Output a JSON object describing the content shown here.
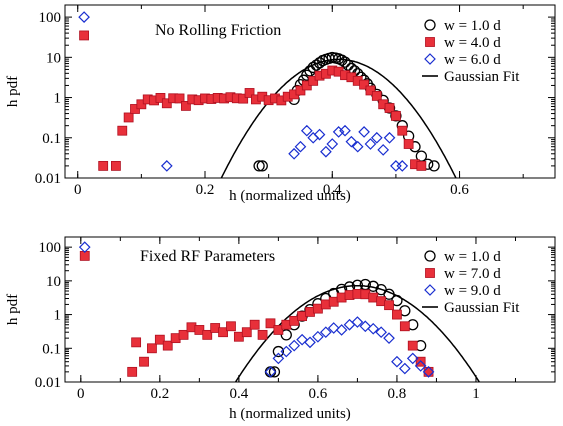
{
  "chart_data": [
    {
      "type": "scatter",
      "title": "No Rolling Friction",
      "xlabel": "h (normalized units)",
      "ylabel": "h pdf",
      "xlim": [
        -0.02,
        0.75
      ],
      "ylim": [
        0.01,
        200
      ],
      "yscale": "log",
      "xticks": [
        0,
        0.2,
        0.4,
        0.6
      ],
      "xtick_labels": [
        "0",
        "0.2",
        "0.4",
        "0.6"
      ],
      "yticks": [
        0.01,
        0.1,
        1,
        10,
        100
      ],
      "ytick_labels": [
        "0.01",
        "0.1",
        "1",
        "10",
        "100"
      ],
      "legend_position": "top-right",
      "series": [
        {
          "name": "w = 1.0 d",
          "marker": "circle",
          "color": "#000000",
          "x": [
            0.285,
            0.29,
            0.34,
            0.345,
            0.35,
            0.355,
            0.36,
            0.365,
            0.37,
            0.375,
            0.38,
            0.385,
            0.39,
            0.395,
            0.4,
            0.405,
            0.41,
            0.415,
            0.42,
            0.425,
            0.43,
            0.435,
            0.44,
            0.445,
            0.45,
            0.455,
            0.46,
            0.47,
            0.48,
            0.49,
            0.5,
            0.51,
            0.52,
            0.53,
            0.54,
            0.55,
            0.56
          ],
          "y": [
            0.02,
            0.02,
            0.9,
            1.5,
            2.1,
            2.7,
            3.6,
            4.6,
            5.6,
            6.4,
            7.3,
            8.3,
            8.9,
            9.4,
            9.9,
            9.6,
            9.2,
            8.5,
            7.6,
            6.4,
            5.3,
            4.6,
            3.9,
            3.2,
            2.7,
            2.2,
            1.7,
            1.2,
            0.85,
            0.55,
            0.35,
            0.2,
            0.11,
            0.06,
            0.035,
            0.022,
            0.02
          ]
        },
        {
          "name": "w = 4.0 d",
          "marker": "square",
          "color": "#e8303a",
          "x": [
            0.01,
            0.04,
            0.06,
            0.07,
            0.08,
            0.09,
            0.1,
            0.11,
            0.12,
            0.13,
            0.14,
            0.15,
            0.16,
            0.17,
            0.18,
            0.19,
            0.2,
            0.21,
            0.22,
            0.23,
            0.24,
            0.25,
            0.26,
            0.27,
            0.28,
            0.29,
            0.3,
            0.31,
            0.32,
            0.33,
            0.34,
            0.35,
            0.36,
            0.37,
            0.38,
            0.39,
            0.4,
            0.41,
            0.42,
            0.43,
            0.44,
            0.45,
            0.46,
            0.47,
            0.48,
            0.49,
            0.5,
            0.51,
            0.52,
            0.53,
            0.54
          ],
          "y": [
            35,
            0.02,
            0.02,
            0.15,
            0.32,
            0.52,
            0.68,
            0.9,
            0.85,
            0.98,
            0.72,
            0.96,
            0.95,
            0.62,
            0.9,
            0.86,
            0.95,
            0.92,
            0.98,
            0.95,
            1.02,
            0.96,
            0.94,
            1.3,
            0.9,
            1.05,
            0.86,
            0.95,
            0.85,
            1.05,
            1.2,
            1.5,
            2.0,
            2.6,
            3.5,
            3.9,
            4.7,
            4.4,
            3.6,
            3.2,
            2.6,
            2.1,
            1.5,
            1.1,
            0.68,
            0.55,
            0.35,
            0.15,
            0.07,
            0.022,
            0.02
          ]
        },
        {
          "name": "w = 6.0 d",
          "marker": "diamond",
          "color": "#1a2fd0",
          "x": [
            0.01,
            0.14,
            0.34,
            0.35,
            0.36,
            0.37,
            0.38,
            0.39,
            0.4,
            0.41,
            0.42,
            0.43,
            0.44,
            0.45,
            0.46,
            0.47,
            0.48,
            0.49,
            0.5,
            0.51
          ],
          "y": [
            100,
            0.02,
            0.04,
            0.06,
            0.15,
            0.1,
            0.12,
            0.045,
            0.07,
            0.14,
            0.15,
            0.08,
            0.06,
            0.14,
            0.07,
            0.1,
            0.05,
            0.1,
            0.02,
            0.02
          ]
        }
      ],
      "fit": {
        "name": "Gaussian Fit",
        "color": "#000000",
        "mu": 0.41,
        "sigma": 0.05,
        "peak": 8.9
      }
    },
    {
      "type": "scatter",
      "title": "Fixed RF Parameters",
      "xlabel": "h (normalized units)",
      "ylabel": "h pdf",
      "xlim": [
        -0.04,
        1.2
      ],
      "ylim": [
        0.01,
        200
      ],
      "yscale": "log",
      "xticks": [
        0,
        0.2,
        0.4,
        0.6,
        0.8,
        1
      ],
      "xtick_labels": [
        "0",
        "0.2",
        "0.4",
        "0.6",
        "0.8",
        "1"
      ],
      "yticks": [
        0.01,
        0.1,
        1,
        10,
        100
      ],
      "ytick_labels": [
        "0.01",
        "0.1",
        "1",
        "10",
        "100"
      ],
      "legend_position": "top-right",
      "series": [
        {
          "name": "w = 1.0 d",
          "marker": "circle",
          "color": "#000000",
          "x": [
            0.48,
            0.49,
            0.5,
            0.52,
            0.54,
            0.56,
            0.58,
            0.6,
            0.62,
            0.64,
            0.66,
            0.68,
            0.7,
            0.72,
            0.74,
            0.76,
            0.78,
            0.8,
            0.82,
            0.84,
            0.86
          ],
          "y": [
            0.02,
            0.02,
            0.08,
            0.25,
            0.5,
            0.9,
            1.4,
            2.1,
            3.0,
            4.2,
            5.6,
            6.6,
            7.4,
            7.8,
            6.9,
            5.5,
            4.0,
            2.6,
            1.3,
            0.5,
            0.12
          ]
        },
        {
          "name": "w = 7.0 d",
          "marker": "square",
          "color": "#e8303a",
          "x": [
            0.01,
            0.13,
            0.14,
            0.16,
            0.18,
            0.2,
            0.22,
            0.24,
            0.26,
            0.28,
            0.3,
            0.32,
            0.34,
            0.36,
            0.38,
            0.4,
            0.42,
            0.44,
            0.46,
            0.48,
            0.5,
            0.52,
            0.54,
            0.56,
            0.58,
            0.6,
            0.62,
            0.64,
            0.66,
            0.68,
            0.7,
            0.72,
            0.74,
            0.76,
            0.78,
            0.8,
            0.82,
            0.84,
            0.86,
            0.88
          ],
          "y": [
            55,
            0.02,
            0.15,
            0.04,
            0.1,
            0.18,
            0.12,
            0.2,
            0.25,
            0.42,
            0.35,
            0.25,
            0.4,
            0.3,
            0.45,
            0.22,
            0.3,
            0.5,
            0.25,
            0.55,
            0.35,
            0.5,
            0.65,
            0.9,
            1.2,
            1.5,
            2.0,
            2.4,
            3.2,
            3.8,
            4.1,
            4.0,
            3.2,
            2.5,
            1.9,
            1.0,
            0.45,
            0.12,
            0.04,
            0.02
          ]
        },
        {
          "name": "w = 9.0 d",
          "marker": "diamond",
          "color": "#1a2fd0",
          "x": [
            0.01,
            0.48,
            0.5,
            0.52,
            0.54,
            0.56,
            0.58,
            0.6,
            0.62,
            0.64,
            0.66,
            0.68,
            0.7,
            0.72,
            0.74,
            0.76,
            0.78,
            0.8,
            0.82,
            0.84,
            0.86,
            0.88
          ],
          "y": [
            100,
            0.02,
            0.05,
            0.08,
            0.12,
            0.18,
            0.15,
            0.22,
            0.3,
            0.4,
            0.35,
            0.5,
            0.6,
            0.45,
            0.38,
            0.3,
            0.2,
            0.04,
            0.025,
            0.05,
            0.03,
            0.02
          ]
        }
      ],
      "fit": {
        "name": "Gaussian Fit",
        "color": "#000000",
        "mu": 0.7,
        "sigma": 0.085,
        "peak": 7.2
      }
    }
  ]
}
